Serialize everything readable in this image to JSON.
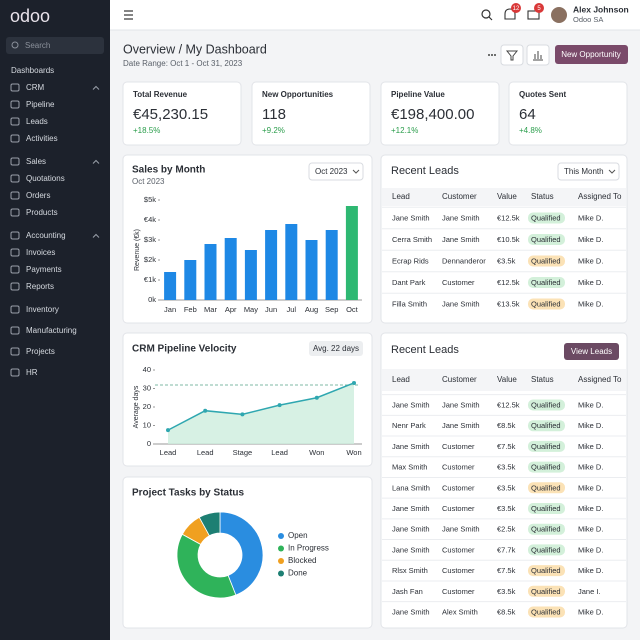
{
  "sidebar": {
    "logo": "odoo",
    "search": "Search",
    "section": "Dashboards",
    "nav": [
      {
        "label": "CRM",
        "items": [
          "Pipeline",
          "Leads",
          "Activities"
        ]
      },
      {
        "label": "Sales",
        "items": [
          "Quotations",
          "Orders",
          "Products"
        ]
      },
      {
        "label": "Accounting",
        "items": [
          "Invoices",
          "Payments",
          "Reports"
        ]
      },
      {
        "label": "Inventory"
      },
      {
        "label": "Manufacturing"
      },
      {
        "label": "Projects"
      },
      {
        "label": "HR"
      }
    ]
  },
  "topbar": {
    "notifications": 12,
    "messages": 5,
    "user": "Alex Johnson",
    "company": "Odoo SA"
  },
  "header": {
    "title": "Overview / My Dashboard",
    "date_range": "Date Range: Oct 1 - Oct 31, 2023",
    "action": "New Opportunity"
  },
  "kpis": [
    {
      "title": "Total Revenue",
      "value": "€45,230.15",
      "change": "+18.5%"
    },
    {
      "title": "New Opportunities",
      "value": "118",
      "change": "+9.2%"
    },
    {
      "title": "Pipeline Value",
      "value": "€198,400.00",
      "change": "+12.1%"
    },
    {
      "title": "Quotes Sent",
      "value": "64",
      "change": "+4.8%"
    }
  ],
  "sales_by_month": {
    "type": "bar",
    "title": "Sales by Month",
    "subtitle": "Oct 2023",
    "period": "Oct 2023",
    "y_label": "Revenue (€k)",
    "categories": [
      "Jan",
      "Feb",
      "Mar",
      "Apr",
      "May",
      "Jun",
      "Jul",
      "Aug",
      "Sep",
      "Oct"
    ],
    "values": [
      1.4,
      2.0,
      2.8,
      3.1,
      2.5,
      3.5,
      3.8,
      3.0,
      3.5,
      4.7
    ],
    "colors": [
      "#1e88e5",
      "#1e88e5",
      "#1e88e5",
      "#1e88e5",
      "#1e88e5",
      "#1e88e5",
      "#1e88e5",
      "#1e88e5",
      "#1e88e5",
      "#2eb872"
    ],
    "ylim": [
      0,
      5
    ],
    "yticks": [
      {
        "value": 0,
        "label": "0k"
      },
      {
        "value": 1,
        "label": "€1k"
      },
      {
        "value": 2,
        "label": "$2k"
      },
      {
        "value": 3,
        "label": "$3k"
      },
      {
        "value": 4,
        "label": "€4k"
      },
      {
        "value": 5,
        "label": "$5k"
      }
    ]
  },
  "recent_leads": {
    "title": "Recent Leads",
    "filter": "This Month",
    "columns": [
      "Lead",
      "Customer",
      "Value",
      "Status",
      "Assigned To"
    ],
    "rows": [
      [
        "Jane Smith",
        "Jane Smith",
        "€12.5k",
        "Qualified",
        "Mike D."
      ],
      [
        "Cerra Smith",
        "Jane Smith",
        "€10.5k",
        "Qualified",
        "Mike D."
      ],
      [
        "Ecrap Rids",
        "Dennanderor",
        "€3.5k",
        "Qualified",
        "Mike D."
      ],
      [
        "Dant Park",
        "Customer",
        "€12.5k",
        "Qualified",
        "Mike D."
      ],
      [
        "Filla Smith",
        "Jane Smith",
        "€13.5k",
        "Qualified",
        "Mike D."
      ]
    ],
    "status_colors": [
      "#d3f0da",
      "#d3f0da",
      "#fbe2b6",
      "#d3f0da",
      "#fbe2b6"
    ]
  },
  "pipeline_velocity": {
    "type": "line",
    "title": "CRM Pipeline Velocity",
    "badge": "Avg. 22 days",
    "y_label": "Average days",
    "categories": [
      "Lead",
      "Lead",
      "Stage",
      "Lead",
      "Won",
      "Won"
    ],
    "values": [
      7.5,
      18,
      16,
      21,
      25,
      33
    ],
    "color": "#2fa7b0",
    "ylim": [
      0,
      40
    ],
    "yticks": [
      0,
      10,
      20,
      30,
      40
    ]
  },
  "recent_leads_all": {
    "title": "Recent Leads",
    "action": "View Leads",
    "columns": [
      "Lead",
      "Customer",
      "Value",
      "Status",
      "Assigned To"
    ],
    "rows": [
      [
        "Jane Smith",
        "Jane Smith",
        "€12.5k",
        "Qualified",
        "Mike D."
      ],
      [
        "Nenr Park",
        "Jane Smith",
        "€8.5k",
        "Qualified",
        "Mike D."
      ],
      [
        "Jane Smith",
        "Customer",
        "€7.5k",
        "Qualified",
        "Mike D."
      ],
      [
        "Max Smith",
        "Customer",
        "€3.5k",
        "Qualified",
        "Mike D."
      ],
      [
        "Lana Smith",
        "Customer",
        "€3.5k",
        "Qualified",
        "Mike D."
      ],
      [
        "Jane Smith",
        "Customer",
        "€3.5k",
        "Qualified",
        "Mike D."
      ],
      [
        "Jane Smith",
        "Jane Smith",
        "€2.5k",
        "Qualified",
        "Mike D."
      ],
      [
        "Jane Smith",
        "Customer",
        "€7.7k",
        "Qualified",
        "Mike D."
      ],
      [
        "Rlsx Smith",
        "Customer",
        "€7.5k",
        "Qualified",
        "Mike D."
      ],
      [
        "Jash Fan",
        "Customer",
        "€3.5k",
        "Qualified",
        "Jane I."
      ],
      [
        "Jane Smith",
        "Alex Smith",
        "€8.5k",
        "Qualified",
        "Mike D."
      ]
    ],
    "status_colors": [
      "#d3f0da",
      "#d3f0da",
      "#d3f0da",
      "#d3f0da",
      "#fbe2b6",
      "#d3f0da",
      "#d3f0da",
      "#d3f0da",
      "#fbe2b6",
      "#fbe2b6",
      "#fbe2b6"
    ]
  },
  "project_tasks": {
    "type": "pie",
    "title": "Project Tasks by Status",
    "categories": [
      "Open",
      "In Progress",
      "Blocked",
      "Done"
    ],
    "values": [
      44,
      39,
      9,
      8
    ],
    "colors": [
      "#2a8de0",
      "#2fb35a",
      "#f0a020",
      "#1d7f73"
    ]
  }
}
